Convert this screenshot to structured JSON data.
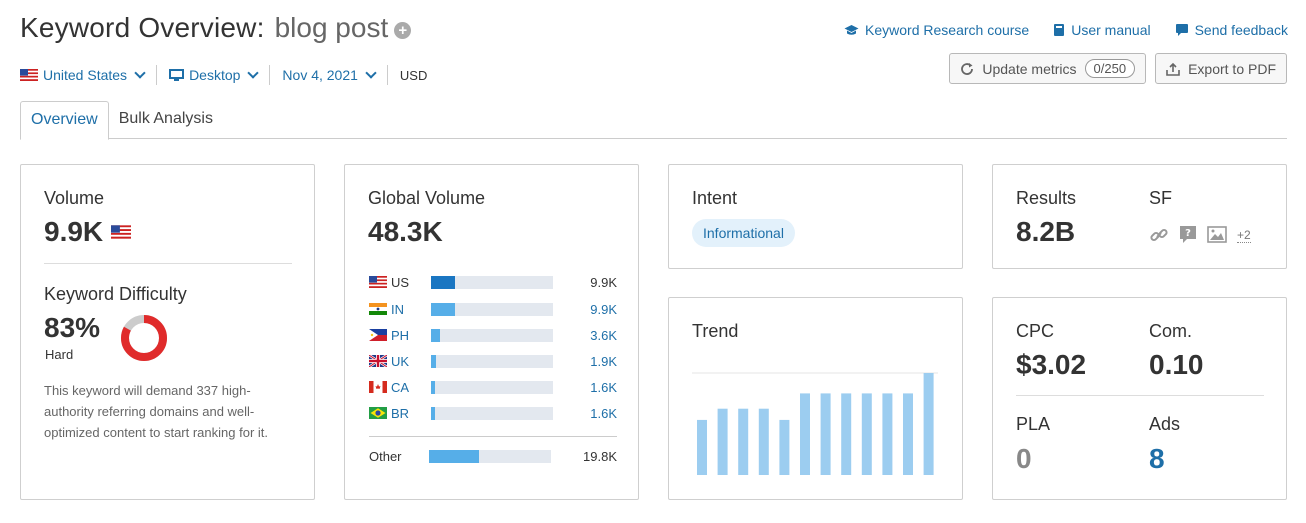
{
  "header": {
    "title": "Keyword Overview:",
    "keyword": "blog post",
    "links": [
      {
        "icon": "graduation-cap-icon",
        "label": "Keyword Research course"
      },
      {
        "icon": "book-icon",
        "label": "User manual"
      },
      {
        "icon": "chat-bubble-icon",
        "label": "Send feedback"
      }
    ]
  },
  "filters": {
    "country": "United States",
    "device": "Desktop",
    "date": "Nov 4, 2021",
    "currency": "USD"
  },
  "actions": {
    "update_label": "Update metrics",
    "update_count": "0/250",
    "export_label": "Export to PDF"
  },
  "tabs": [
    {
      "label": "Overview",
      "active": true
    },
    {
      "label": "Bulk Analysis",
      "active": false
    }
  ],
  "volume": {
    "label": "Volume",
    "value": "9.9K"
  },
  "keyword_difficulty": {
    "label": "Keyword Difficulty",
    "value": "83%",
    "level": "Hard",
    "percent": 83,
    "description": "This keyword will demand 337 high-authority referring domains and well-optimized content to start ranking for it."
  },
  "global_volume": {
    "label": "Global Volume",
    "value": "48.3K",
    "countries": [
      {
        "code": "US",
        "value": "9.9K",
        "share": 0.2,
        "highlight": false
      },
      {
        "code": "IN",
        "value": "9.9K",
        "share": 0.2,
        "highlight": true
      },
      {
        "code": "PH",
        "value": "3.6K",
        "share": 0.07,
        "highlight": true
      },
      {
        "code": "UK",
        "value": "1.9K",
        "share": 0.04,
        "highlight": true
      },
      {
        "code": "CA",
        "value": "1.6K",
        "share": 0.03,
        "highlight": true
      },
      {
        "code": "BR",
        "value": "1.6K",
        "share": 0.03,
        "highlight": true
      }
    ],
    "other": {
      "label": "Other",
      "value": "19.8K",
      "share": 0.41
    }
  },
  "intent": {
    "label": "Intent",
    "value": "Informational"
  },
  "trend": {
    "label": "Trend",
    "relative_values": [
      0.54,
      0.65,
      0.65,
      0.65,
      0.54,
      0.8,
      0.8,
      0.8,
      0.8,
      0.8,
      0.8,
      1.0
    ]
  },
  "results": {
    "label": "Results",
    "value": "8.2B",
    "sf_label": "SF",
    "sf_more": "+2"
  },
  "cpc": {
    "cpc_label": "CPC",
    "cpc_value": "$3.02",
    "com_label": "Com.",
    "com_value": "0.10",
    "pla_label": "PLA",
    "pla_value": "0",
    "ads_label": "Ads",
    "ads_value": "8"
  },
  "colors": {
    "accent": "#1e6fa8",
    "bar_primary": "#1a76c2",
    "bar_secondary": "#56aee8",
    "trend_bar": "#9ccdf0",
    "kd_red": "#e02b2b",
    "kd_gray": "#cccccc"
  }
}
